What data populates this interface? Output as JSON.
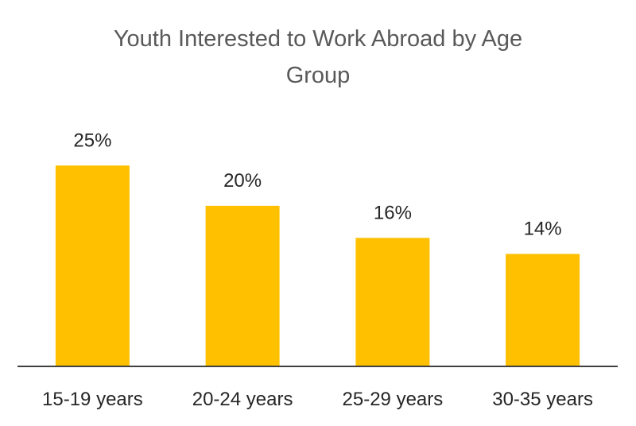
{
  "chart_data": {
    "type": "bar",
    "title": "Youth Interested to Work Abroad by Age Group",
    "title_lines": [
      "Youth Interested to Work Abroad by Age",
      "Group"
    ],
    "categories": [
      "15-19 years",
      "20-24 years",
      "25-29 years",
      "30-35 years"
    ],
    "values": [
      25,
      20,
      16,
      14
    ],
    "value_labels": [
      "25%",
      "20%",
      "16%",
      "14%"
    ],
    "xlabel": "",
    "ylabel": "",
    "ylim": [
      0,
      28
    ],
    "grid": false,
    "legend": "none",
    "bar_color": "#FFC000",
    "axis_color": "#404040"
  }
}
